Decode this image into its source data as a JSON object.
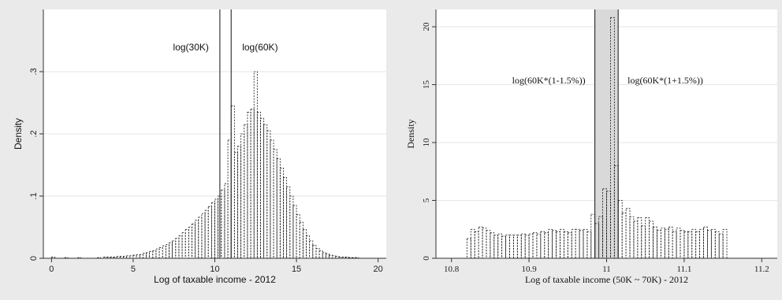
{
  "chart_data": [
    {
      "type": "bar",
      "style": "dashed-outline histogram",
      "xlabel": "Log of taxable income - 2012",
      "ylabel": "Density",
      "xlim": [
        -0.5,
        20.5
      ],
      "ylim": [
        0,
        0.4
      ],
      "xticks": [
        0,
        5,
        10,
        15,
        20
      ],
      "xtick_labels": [
        "0",
        "5",
        "10",
        "15",
        "20"
      ],
      "yticks": [
        0,
        0.1,
        0.2,
        0.3
      ],
      "ytick_labels": [
        "0",
        ".1",
        ".2",
        ".3"
      ],
      "grid": "horizontal",
      "vlines": [
        {
          "x": 10.31,
          "label": "log(30K)"
        },
        {
          "x": 11.0,
          "label": "log(60K)"
        }
      ],
      "bin_width": 0.2,
      "bins": [
        [
          0.0,
          0.002
        ],
        [
          0.8,
          0.001
        ],
        [
          1.6,
          0.001
        ],
        [
          2.8,
          0.001
        ],
        [
          3.2,
          0.002
        ],
        [
          3.4,
          0.002
        ],
        [
          3.6,
          0.002
        ],
        [
          3.8,
          0.002
        ],
        [
          4.0,
          0.003
        ],
        [
          4.2,
          0.003
        ],
        [
          4.4,
          0.003
        ],
        [
          4.6,
          0.004
        ],
        [
          4.8,
          0.004
        ],
        [
          5.0,
          0.005
        ],
        [
          5.2,
          0.006
        ],
        [
          5.4,
          0.006
        ],
        [
          5.6,
          0.008
        ],
        [
          5.8,
          0.009
        ],
        [
          6.0,
          0.011
        ],
        [
          6.2,
          0.012
        ],
        [
          6.4,
          0.015
        ],
        [
          6.6,
          0.017
        ],
        [
          6.8,
          0.02
        ],
        [
          7.0,
          0.022
        ],
        [
          7.2,
          0.025
        ],
        [
          7.4,
          0.028
        ],
        [
          7.6,
          0.032
        ],
        [
          7.8,
          0.036
        ],
        [
          8.0,
          0.041
        ],
        [
          8.2,
          0.046
        ],
        [
          8.4,
          0.05
        ],
        [
          8.6,
          0.055
        ],
        [
          8.8,
          0.061
        ],
        [
          9.0,
          0.066
        ],
        [
          9.2,
          0.072
        ],
        [
          9.4,
          0.077
        ],
        [
          9.6,
          0.083
        ],
        [
          9.8,
          0.089
        ],
        [
          10.0,
          0.095
        ],
        [
          10.2,
          0.1
        ],
        [
          10.4,
          0.11
        ],
        [
          10.6,
          0.12
        ],
        [
          10.8,
          0.19
        ],
        [
          11.0,
          0.245
        ],
        [
          11.2,
          0.17
        ],
        [
          11.4,
          0.18
        ],
        [
          11.6,
          0.2
        ],
        [
          11.8,
          0.215
        ],
        [
          12.0,
          0.235
        ],
        [
          12.2,
          0.24
        ],
        [
          12.4,
          0.3
        ],
        [
          12.6,
          0.235
        ],
        [
          12.8,
          0.225
        ],
        [
          13.0,
          0.215
        ],
        [
          13.2,
          0.205
        ],
        [
          13.4,
          0.19
        ],
        [
          13.6,
          0.175
        ],
        [
          13.8,
          0.16
        ],
        [
          14.0,
          0.145
        ],
        [
          14.2,
          0.13
        ],
        [
          14.4,
          0.115
        ],
        [
          14.6,
          0.1
        ],
        [
          14.8,
          0.085
        ],
        [
          15.0,
          0.07
        ],
        [
          15.2,
          0.058
        ],
        [
          15.4,
          0.046
        ],
        [
          15.6,
          0.036
        ],
        [
          15.8,
          0.028
        ],
        [
          16.0,
          0.021
        ],
        [
          16.2,
          0.016
        ],
        [
          16.4,
          0.012
        ],
        [
          16.6,
          0.009
        ],
        [
          16.8,
          0.007
        ],
        [
          17.0,
          0.005
        ],
        [
          17.2,
          0.004
        ],
        [
          17.4,
          0.003
        ],
        [
          17.6,
          0.002
        ],
        [
          17.8,
          0.002
        ],
        [
          18.0,
          0.002
        ],
        [
          18.2,
          0.001
        ],
        [
          18.4,
          0.001
        ],
        [
          18.6,
          0.001
        ]
      ]
    },
    {
      "type": "bar",
      "style": "dashed-outline histogram",
      "xlabel": "Log of taxable income (50K ~ 70K) - 2012",
      "ylabel": "Density",
      "xlim": [
        10.78,
        11.22
      ],
      "ylim": [
        0,
        21.5
      ],
      "xticks": [
        10.8,
        10.9,
        11.0,
        11.1,
        11.2
      ],
      "xtick_labels": [
        "10.8",
        "10.9",
        "11",
        "11.1",
        "11.2"
      ],
      "yticks": [
        0,
        5,
        10,
        15,
        20
      ],
      "ytick_labels": [
        "0",
        "5",
        "10",
        "15",
        "20"
      ],
      "grid": "horizontal",
      "shaded_band": {
        "from": 10.9849,
        "to": 11.0149
      },
      "vlines": [
        {
          "x": 10.9849,
          "label": "log(60K*(1-1.5%))"
        },
        {
          "x": 11.0149,
          "label": "log(60K*(1+1.5%))"
        }
      ],
      "bin_width": 0.005,
      "bins": [
        [
          10.82,
          1.7
        ],
        [
          10.825,
          2.5
        ],
        [
          10.83,
          2.3
        ],
        [
          10.835,
          2.7
        ],
        [
          10.84,
          2.6
        ],
        [
          10.845,
          2.4
        ],
        [
          10.85,
          2.2
        ],
        [
          10.855,
          2.0
        ],
        [
          10.86,
          2.1
        ],
        [
          10.865,
          1.9
        ],
        [
          10.87,
          2.0
        ],
        [
          10.875,
          2.0
        ],
        [
          10.88,
          2.0
        ],
        [
          10.885,
          2.0
        ],
        [
          10.89,
          2.1
        ],
        [
          10.895,
          2.0
        ],
        [
          10.9,
          2.1
        ],
        [
          10.905,
          2.2
        ],
        [
          10.91,
          2.1
        ],
        [
          10.915,
          2.3
        ],
        [
          10.92,
          2.2
        ],
        [
          10.925,
          2.5
        ],
        [
          10.93,
          2.4
        ],
        [
          10.935,
          2.3
        ],
        [
          10.94,
          2.5
        ],
        [
          10.945,
          2.3
        ],
        [
          10.95,
          2.2
        ],
        [
          10.955,
          2.5
        ],
        [
          10.96,
          2.5
        ],
        [
          10.965,
          2.4
        ],
        [
          10.97,
          2.5
        ],
        [
          10.975,
          2.3
        ],
        [
          10.98,
          3.8
        ],
        [
          10.985,
          3.0
        ],
        [
          10.99,
          3.6
        ],
        [
          10.995,
          6.0
        ],
        [
          11.0,
          5.8
        ],
        [
          11.005,
          20.8
        ],
        [
          11.01,
          8.0
        ],
        [
          11.015,
          5.0
        ],
        [
          11.02,
          3.9
        ],
        [
          11.025,
          4.3
        ],
        [
          11.03,
          3.6
        ],
        [
          11.035,
          3.2
        ],
        [
          11.04,
          3.5
        ],
        [
          11.045,
          2.8
        ],
        [
          11.05,
          3.5
        ],
        [
          11.055,
          3.2
        ],
        [
          11.06,
          2.7
        ],
        [
          11.065,
          2.4
        ],
        [
          11.07,
          2.6
        ],
        [
          11.075,
          2.5
        ],
        [
          11.08,
          2.7
        ],
        [
          11.085,
          2.3
        ],
        [
          11.09,
          2.6
        ],
        [
          11.095,
          2.4
        ],
        [
          11.1,
          2.3
        ],
        [
          11.105,
          2.3
        ],
        [
          11.11,
          2.5
        ],
        [
          11.115,
          2.3
        ],
        [
          11.12,
          2.5
        ],
        [
          11.125,
          2.7
        ],
        [
          11.13,
          2.4
        ],
        [
          11.135,
          2.5
        ],
        [
          11.14,
          2.3
        ],
        [
          11.145,
          2.1
        ],
        [
          11.15,
          2.5
        ]
      ]
    }
  ]
}
